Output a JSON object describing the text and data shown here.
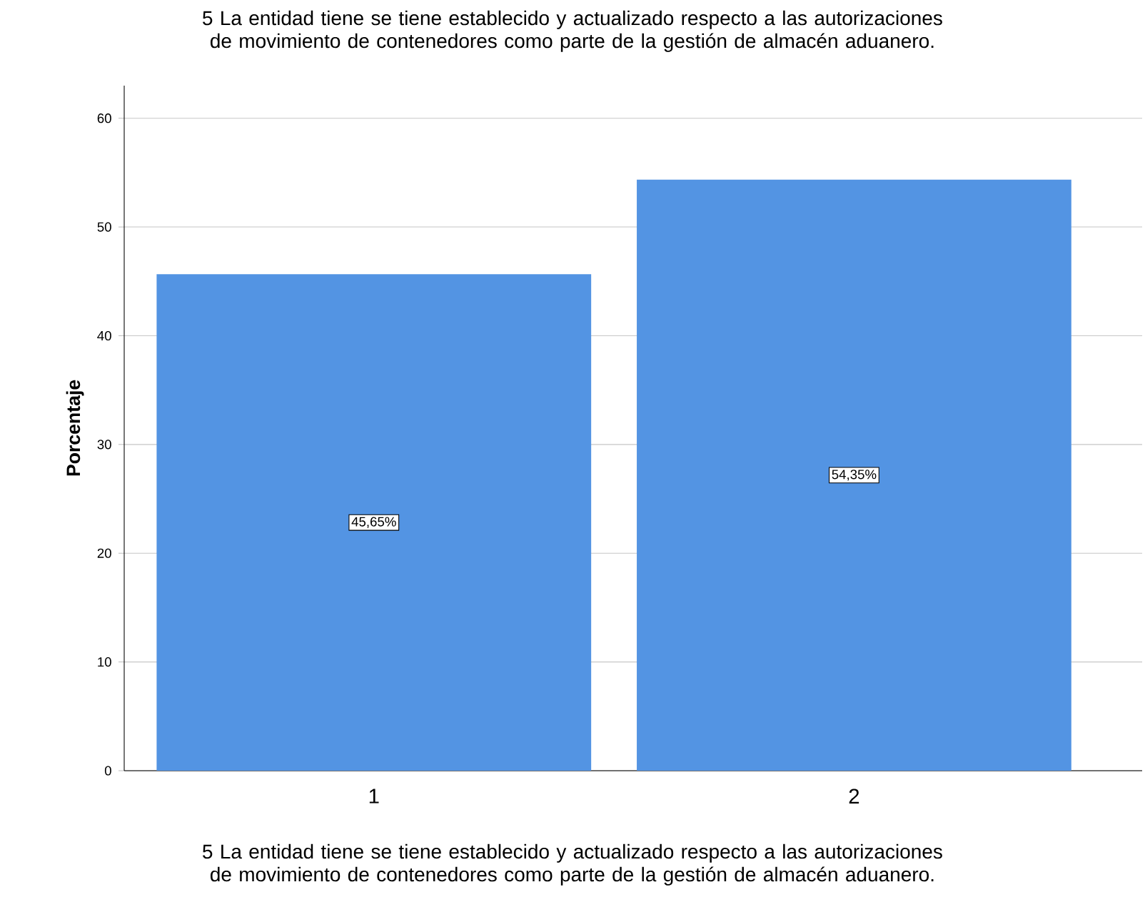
{
  "chart_data": {
    "type": "bar",
    "title": "5 La entidad tiene se tiene establecido y actualizado respecto a las autorizaciones de movimiento de contenedores como parte de la gestión de almacén aduanero.",
    "xlabel": "5 La entidad tiene se tiene establecido y actualizado respecto a las autorizaciones de movimiento de contenedores como parte de la gestión de almacén aduanero.",
    "ylabel": "Porcentaje",
    "categories": [
      "1",
      "2"
    ],
    "values": [
      45.65,
      54.35
    ],
    "value_labels": [
      "45,65%",
      "54,35%"
    ],
    "color": "#5394e3",
    "ylim": [
      0,
      63
    ],
    "yticks": [
      0,
      10,
      20,
      30,
      40,
      50,
      60
    ],
    "grid": "y"
  }
}
